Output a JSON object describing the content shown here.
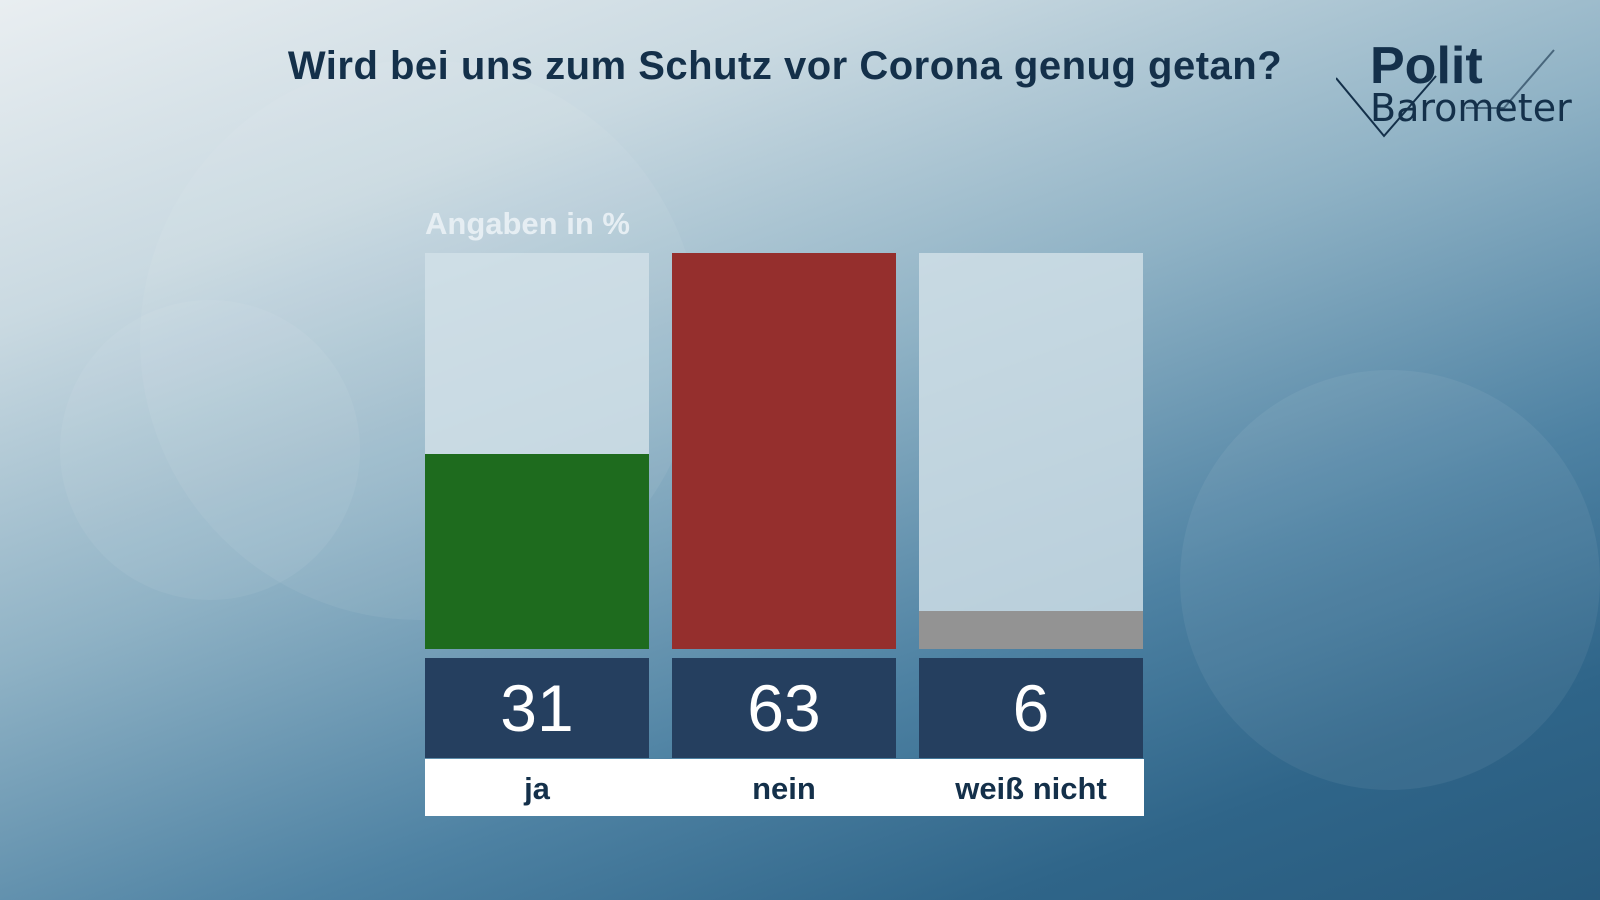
{
  "header": {
    "title": "Wird bei uns zum Schutz vor Corona genug getan?"
  },
  "logo": {
    "line1": "Polit",
    "line2": "Barometer"
  },
  "chart_data": {
    "type": "bar",
    "title": "Wird bei uns zum Schutz vor Corona genug getan?",
    "unit_label": "Angaben in %",
    "categories": [
      "ja",
      "nein",
      "weiß nicht"
    ],
    "values": [
      31,
      63,
      6
    ],
    "display_values": [
      "31",
      "63",
      "6"
    ],
    "colors": [
      "#1e6b1e",
      "#952f2d",
      "#939393"
    ],
    "ylim": [
      0,
      63
    ],
    "grid": false,
    "legend": "none"
  },
  "colors": {
    "title": "#14304a",
    "value_box": "#253f5f",
    "track": "#d2e1e8"
  }
}
